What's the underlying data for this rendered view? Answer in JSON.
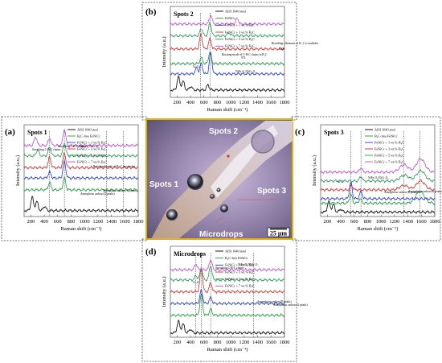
{
  "colors": {
    "series": [
      "#000000",
      "#1a9a3a",
      "#2238d8",
      "#d42a2a",
      "#229a55",
      "#c04ad8"
    ],
    "frame": "#555555",
    "photo_frame": "#e0b400",
    "dashed_box": "#444444"
  },
  "photo": {
    "labels": [
      "Spots 1",
      "Spots 2",
      "Spots 3",
      "Microdrops"
    ],
    "scale_bar": "25 μm"
  },
  "chart_data": [
    {
      "id": "b",
      "type": "line",
      "panel_label": "(b)",
      "title": "Spots 2",
      "xlabel": "Raman shift (cm⁻¹)",
      "ylabel": "Intensity (a.u.)",
      "xlim": [
        100,
        1800
      ],
      "xticks": [
        200,
        400,
        600,
        800,
        1000,
        1200,
        1400,
        1600,
        1800
      ],
      "tick_labels": [
        "200",
        "400",
        "600",
        "800",
        "1000",
        "1200",
        "1400",
        "1600",
        "1800"
      ],
      "legend": [
        "AISI 1040 steel",
        "FeNiCr",
        "FeNiCr + 1 wt.% B₄C",
        "FeNiCr + 3 wt.% B₄C",
        "FeNiCr + 5 wt.% B₄C",
        "FeNiCr + 7 wt.% B₄C"
      ],
      "legend_position": "top-right",
      "annotations": [
        "Cr₂O₃",
        "Rotating mode of C-B-C chains in B₄C",
        "NiFe₂O₄/NiCr₂O₄",
        "974",
        "Breathing vibrations of B₁₁C icosahedra",
        "1096"
      ],
      "dashed_lines": [
        550,
        690
      ],
      "series": [
        {
          "name": "AISI 1040 steel",
          "offset": 0.5,
          "peaks": [
            [
              220,
              0.9
            ],
            [
              290,
              0.6
            ],
            [
              405,
              0.25
            ],
            [
              660,
              0.35
            ]
          ]
        },
        {
          "name": "FeNiCr",
          "offset": 2.3,
          "peaks": [
            [
              560,
              0.4
            ],
            [
              690,
              0.8
            ]
          ]
        },
        {
          "name": "FeNiCr + 1 wt.% B₄C",
          "offset": 1.6,
          "peaks": [
            [
              490,
              0.4
            ],
            [
              560,
              0.7
            ],
            [
              700,
              1.4
            ]
          ]
        },
        {
          "name": "FeNiCr + 3 wt.% B₄C",
          "offset": 3.3,
          "peaks": [
            [
              555,
              1.0
            ],
            [
              690,
              0.7
            ]
          ]
        },
        {
          "name": "FeNiCr + 5 wt.% B₄C",
          "offset": 4.2,
          "peaks": [
            [
              560,
              0.5
            ],
            [
              690,
              0.9
            ],
            [
              974,
              0.2
            ]
          ]
        },
        {
          "name": "FeNiCr + 7 wt.% B₄C",
          "offset": 5.0,
          "peaks": [
            [
              700,
              0.6
            ],
            [
              1096,
              0.4
            ]
          ]
        }
      ]
    },
    {
      "id": "a",
      "type": "line",
      "panel_label": "(a)",
      "title": "Spots 1",
      "xlabel": "Raman shift (cm⁻¹)",
      "ylabel": "Intensity (a.u.)",
      "xlim": [
        100,
        1800
      ],
      "xticks": [
        200,
        400,
        600,
        800,
        1000,
        1200,
        1400,
        1600,
        1800
      ],
      "tick_labels": [
        "200",
        "400",
        "600",
        "800",
        "1000",
        "1200",
        "1400",
        "1600",
        "1800"
      ],
      "legend": [
        "AISI 1040 steel",
        "B₄C-free FeNiCr",
        "FeNiCr + 1 wt.% B₄C",
        "FeNiCr + 3 wt.% B₄C",
        "FeNiCr + 5 wt.% B₄C",
        "FeNiCr + 7 wt.% B₄C"
      ],
      "legend_position": "top-right",
      "annotations": [
        "Stretching C-B-C chains",
        "Stretching C-B-C chains",
        "NiFe₂O₄/NiCr₂O₄",
        "Rotational mode of B₁₁C icosahedra",
        "Amorphous carbon (D peaks)",
        "Amorphous carbon (G peaks)"
      ],
      "dashed_lines": [
        480,
        700,
        1330,
        1580
      ],
      "series": [
        {
          "name": "AISI 1040 steel",
          "offset": 0.4,
          "peaks": [
            [
              220,
              0.9
            ],
            [
              290,
              0.6
            ],
            [
              405,
              0.3
            ]
          ]
        },
        {
          "name": "B₄C-free FeNiCr",
          "offset": 1.8,
          "peaks": [
            [
              480,
              0.5
            ],
            [
              700,
              0.8
            ]
          ]
        },
        {
          "name": "FeNiCr + 1 wt.% B₄C",
          "offset": 2.6,
          "peaks": [
            [
              480,
              0.4
            ],
            [
              700,
              1.1
            ]
          ]
        },
        {
          "name": "FeNiCr + 3 wt.% B₄C",
          "offset": 3.3,
          "peaks": [
            [
              480,
              0.7
            ],
            [
              700,
              1.0
            ]
          ]
        },
        {
          "name": "FeNiCr + 5 wt.% B₄C",
          "offset": 4.1,
          "peaks": [
            [
              300,
              0.4
            ],
            [
              480,
              0.6
            ],
            [
              700,
              0.9
            ]
          ]
        },
        {
          "name": "FeNiCr + 7 wt.% B₄C",
          "offset": 4.8,
          "peaks": [
            [
              270,
              0.6
            ],
            [
              480,
              0.5
            ],
            [
              700,
              1.1
            ]
          ]
        }
      ]
    },
    {
      "id": "c",
      "type": "line",
      "panel_label": "(c)",
      "title": "Spots 3",
      "xlabel": "Raman shift (cm⁻¹)",
      "ylabel": "Intensity (a.u.)",
      "xlim": [
        100,
        1800
      ],
      "xticks": [
        200,
        400,
        600,
        800,
        1000,
        1200,
        1400,
        1600,
        1800
      ],
      "tick_labels": [
        "200",
        "400",
        "600",
        "800",
        "1000",
        "1200",
        "1400",
        "1600",
        "1800"
      ],
      "legend": [
        "AISI 1040 steel",
        "B₄C-free FeNiCr",
        "FeNiCr + 1 wt.% B₄C",
        "FeNiCr + 3 wt.% B₄C",
        "FeNiCr + 5 wt.% B₄C",
        "FeNiCr + 7 wt.% B₄C"
      ],
      "legend_position": "top-right",
      "annotations": [
        "Cr₂O₃",
        "NiFe₂O₄/NiCr₂O₄",
        "Amorphous carbon (D peaks)",
        "Amorphous carbon (G peaks)"
      ],
      "dashed_lines": [
        550,
        700,
        1340,
        1580
      ],
      "series": [
        {
          "name": "AISI 1040 steel",
          "offset": 0.3,
          "peaks": [
            [
              220,
              0.7
            ],
            [
              290,
              0.5
            ],
            [
              400,
              0.2
            ]
          ]
        },
        {
          "name": "B₄C-free FeNiCr",
          "offset": 0.9,
          "peaks": [
            [
              550,
              0.6
            ],
            [
              690,
              0.3
            ],
            [
              1580,
              0.8
            ]
          ]
        },
        {
          "name": "FeNiCr + 1 wt.% B₄C",
          "offset": 1.2,
          "peaks": [
            [
              550,
              1.1
            ],
            [
              700,
              0.5
            ]
          ]
        },
        {
          "name": "FeNiCr + 3 wt.% B₄C",
          "offset": 1.8,
          "peaks": [
            [
              560,
              0.3
            ],
            [
              1340,
              0.3
            ],
            [
              1590,
              0.6
            ]
          ]
        },
        {
          "name": "FeNiCr + 5 wt.% B₄C",
          "offset": 2.4,
          "peaks": [
            [
              700,
              0.3
            ],
            [
              1350,
              0.4
            ],
            [
              1590,
              0.7
            ]
          ]
        },
        {
          "name": "FeNiCr + 7 wt.% B₄C",
          "offset": 3.0,
          "peaks": [
            [
              700,
              0.3
            ],
            [
              1340,
              0.5
            ],
            [
              1590,
              0.9
            ]
          ]
        }
      ]
    },
    {
      "id": "d",
      "type": "line",
      "panel_label": "(d)",
      "title": "Microdrops",
      "xlabel": "Raman shift (cm⁻¹)",
      "ylabel": "Intensity (a.u.)",
      "xlim": [
        100,
        1800
      ],
      "xticks": [
        200,
        400,
        600,
        800,
        1000,
        1200,
        1400,
        1600,
        1800
      ],
      "tick_labels": [
        "200",
        "400",
        "600",
        "800",
        "1000",
        "1200",
        "1400",
        "1600",
        "1800"
      ],
      "legend": [
        "AISI 1040 steel",
        "B₄C-free FeNiCr",
        "FeNiCr + 1 wt.% B₄C",
        "FeNiCr + 3 wt.% B₄C",
        "FeNiCr + 5 wt.% B₄C",
        "FeNiCr + 7 wt.% B₄C"
      ],
      "legend_position": "top-right",
      "annotations": [
        "Stretching C-B-C chains",
        "NiFe₂O₄/NiCr₂O₄",
        "Cr₂O₃",
        "Amorphous carbon (D peaks)",
        "Amorphous carbon (G peaks)"
      ],
      "dashed_lines": [
        480,
        560,
        700,
        1340
      ],
      "series": [
        {
          "name": "AISI 1040 steel",
          "offset": 0.3,
          "peaks": [
            [
              220,
              0.8
            ],
            [
              290,
              0.6
            ],
            [
              400,
              0.25
            ]
          ]
        },
        {
          "name": "B₄C-free FeNiCr",
          "offset": 1.5,
          "peaks": [
            [
              560,
              1.4
            ],
            [
              700,
              0.4
            ]
          ]
        },
        {
          "name": "FeNiCr + 1 wt.% B₄C",
          "offset": 2.3,
          "peaks": [
            [
              560,
              0.9
            ],
            [
              700,
              0.4
            ]
          ]
        },
        {
          "name": "FeNiCr + 3 wt.% B₄C",
          "offset": 3.1,
          "peaks": [
            [
              560,
              1.6
            ],
            [
              700,
              0.6
            ]
          ]
        },
        {
          "name": "FeNiCr + 5 wt.% B₄C",
          "offset": 3.9,
          "peaks": [
            [
              480,
              0.3
            ],
            [
              560,
              0.8
            ],
            [
              700,
              1.0
            ]
          ]
        },
        {
          "name": "FeNiCr + 7 wt.% B₄C",
          "offset": 4.6,
          "peaks": [
            [
              480,
              0.4
            ],
            [
              700,
              0.7
            ]
          ]
        }
      ]
    }
  ]
}
